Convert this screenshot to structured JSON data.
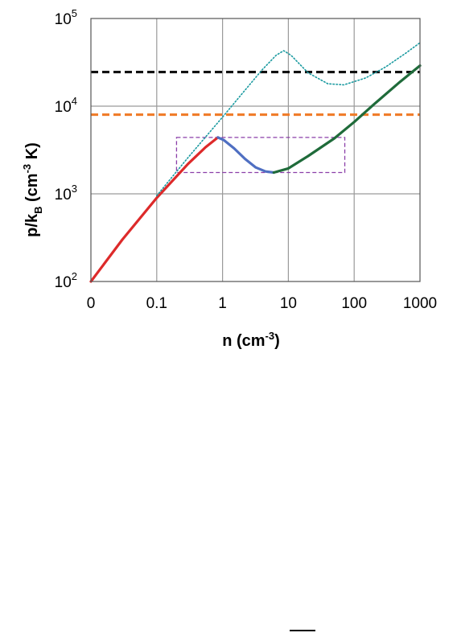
{
  "chart_data": {
    "type": "line",
    "title": "",
    "xlabel": {
      "main": "n (cm",
      "sup": "-3",
      "tail": ")"
    },
    "ylabel": {
      "p": "p/k",
      "sub": "B",
      "mid": " (cm",
      "sup": "-3",
      "tail": " K)"
    },
    "x_scale": "log",
    "y_scale": "log",
    "x_ticks": [
      "0",
      "0.1",
      "1",
      "10",
      "100",
      "1000"
    ],
    "y_ticks": [
      {
        "base": "10",
        "exp": "2"
      },
      {
        "base": "10",
        "exp": "3"
      },
      {
        "base": "10",
        "exp": "4"
      },
      {
        "base": "10",
        "exp": "5"
      }
    ],
    "xlim": [
      0.01,
      1000
    ],
    "ylim": [
      100,
      100000
    ],
    "grid": true,
    "legend": "none",
    "hlines": [
      {
        "y": 24500,
        "color": "#111111",
        "style": "dashed"
      },
      {
        "y": 8000,
        "color": "#f07d2b",
        "style": "dashed"
      }
    ],
    "box": {
      "x": [
        0.2,
        72
      ],
      "y": [
        1750,
        4400
      ],
      "color": "#8b3fa8",
      "style": "dashed"
    },
    "series": [
      {
        "color": "#dd2a2a",
        "style": "solid",
        "x": [
          0.01,
          0.03,
          0.1,
          0.3,
          0.55,
          0.85
        ],
        "y": [
          100,
          300,
          900,
          2200,
          3400,
          4400
        ]
      },
      {
        "color": "#4f6fc2",
        "style": "solid",
        "x": [
          0.85,
          1.05,
          1.5,
          2.2,
          3.2,
          4.5,
          6.0
        ],
        "y": [
          4400,
          4100,
          3300,
          2500,
          2000,
          1800,
          1750
        ]
      },
      {
        "color": "#1f6b3a",
        "style": "solid",
        "x": [
          6.0,
          10,
          20,
          50,
          100,
          200,
          500,
          1000
        ],
        "y": [
          1750,
          1950,
          2700,
          4300,
          6600,
          10500,
          19000,
          29000
        ]
      },
      {
        "color": "#1a9aa0",
        "style": "dotted",
        "x": [
          0.1,
          0.3,
          1,
          2,
          4,
          6.5,
          8.5,
          11,
          20,
          40,
          70,
          150,
          300,
          600,
          1000
        ],
        "y": [
          950,
          2600,
          7500,
          14000,
          26000,
          38000,
          43000,
          38000,
          24000,
          18000,
          17500,
          21000,
          28000,
          40000,
          53000
        ]
      }
    ]
  }
}
